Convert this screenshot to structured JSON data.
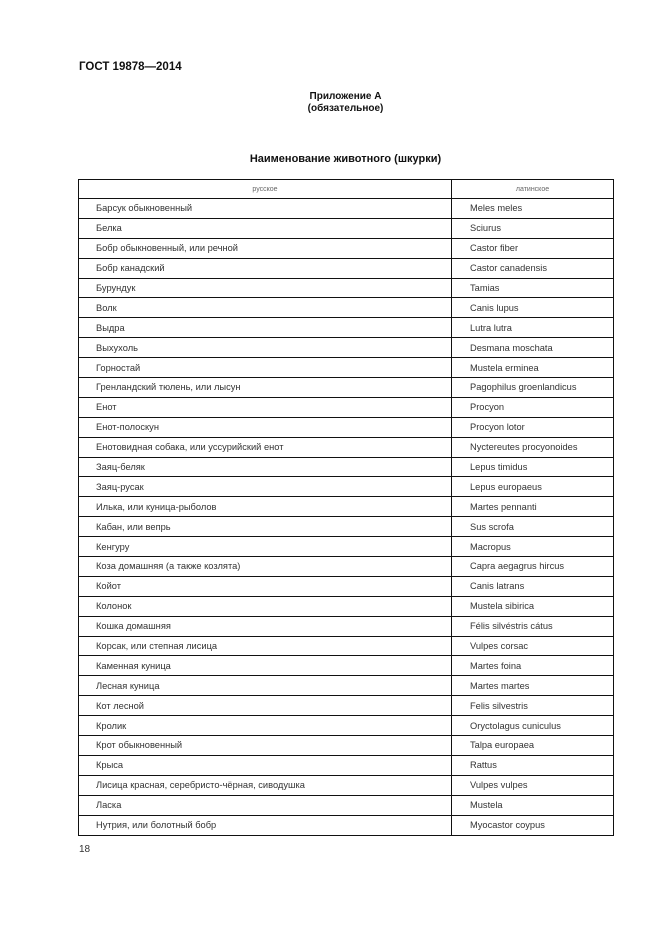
{
  "header": {
    "doc_code": "ГОСТ 19878—2014"
  },
  "annex": {
    "title": "Приложение А",
    "status": "(обязательное)"
  },
  "table": {
    "title": "Наименование животного (шкурки)",
    "columns": [
      "русское",
      "латинское"
    ],
    "rows": [
      [
        "Барсук обыкновенный",
        "Meles meles"
      ],
      [
        "Белка",
        "Sciurus"
      ],
      [
        "Бобр обыкновенный, или речной",
        "Castor fiber"
      ],
      [
        "Бобр канадский",
        "Castor canadensis"
      ],
      [
        "Бурундук",
        "Tamias"
      ],
      [
        "Волк",
        "Canis lupus"
      ],
      [
        "Выдра",
        "Lutra lutra"
      ],
      [
        "Выхухоль",
        "Desmana moschata"
      ],
      [
        "Горностай",
        "Mustela erminea"
      ],
      [
        "Гренландский тюлень, или лысун",
        "Pagophilus groenlandicus"
      ],
      [
        "Енот",
        "Procyon"
      ],
      [
        "Енот-полоскун",
        "Procyon lotor"
      ],
      [
        "Енотовидная собака, или уссурийский енот",
        "Nyctereutes procyonoides"
      ],
      [
        "Заяц-беляк",
        "Lepus timidus"
      ],
      [
        "Заяц-русак",
        "Lepus europaeus"
      ],
      [
        "Илька, или куница-рыболов",
        "Martes pennanti"
      ],
      [
        "Кабан, или вепрь",
        "Sus scrofa"
      ],
      [
        "Кенгуру",
        "Macropus"
      ],
      [
        "Коза домашняя (а также козлята)",
        "Capra aegagrus hircus"
      ],
      [
        "Койот",
        "Canis latrans"
      ],
      [
        "Колонок",
        "Mustela sibirica"
      ],
      [
        "Кошка домашняя",
        "Félis silvéstris cátus"
      ],
      [
        "Корсак, или степная лисица",
        "Vulpes corsac"
      ],
      [
        "Каменная куница",
        "Martes foina"
      ],
      [
        "Лесная куница",
        "Martes martes"
      ],
      [
        "Кот лесной",
        "Felis silvestris"
      ],
      [
        "Кролик",
        "Oryctolagus cuniculus"
      ],
      [
        "Крот обыкновенный",
        "Talpa europaea"
      ],
      [
        "Крыса",
        "Rattus"
      ],
      [
        "Лисица красная, серебристо-чёрная, сиводушка",
        "Vulpes vulpes"
      ],
      [
        "Ласка",
        "Mustela"
      ],
      [
        "Нутрия, или болотный бобр",
        "Myocastor coypus"
      ]
    ]
  },
  "footer": {
    "page_number": "18"
  }
}
